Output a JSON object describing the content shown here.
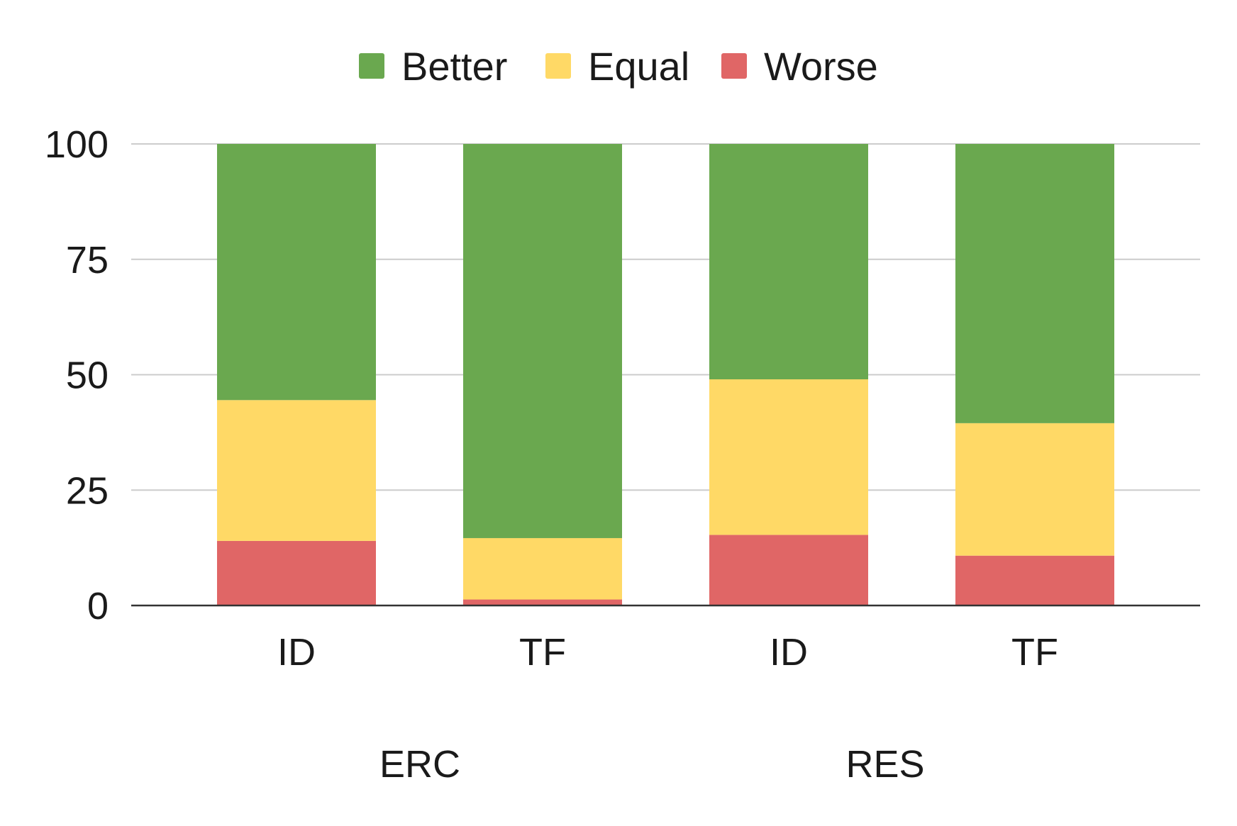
{
  "chart_data": {
    "type": "bar",
    "stacked": true,
    "categories": [
      "ID",
      "TF",
      "ID",
      "TF"
    ],
    "groups": [
      {
        "label": "ERC",
        "categories": [
          "ID",
          "TF"
        ]
      },
      {
        "label": "RES",
        "categories": [
          "ID",
          "TF"
        ]
      }
    ],
    "series": [
      {
        "name": "Worse",
        "color": "#e06666",
        "values": [
          14,
          1.3,
          15.3,
          10.8
        ]
      },
      {
        "name": "Equal",
        "color": "#ffd966",
        "values": [
          30.5,
          13.3,
          33.7,
          28.7
        ]
      },
      {
        "name": "Better",
        "color": "#6aa84f",
        "values": [
          55.5,
          85.4,
          51,
          60.5
        ]
      }
    ],
    "legend": {
      "position": "top",
      "entries": [
        "Better",
        "Equal",
        "Worse"
      ]
    },
    "yticks": [
      "0",
      "25",
      "50",
      "75",
      "100"
    ],
    "ylim": [
      0,
      100
    ],
    "grid": true,
    "title": "",
    "xlabel": "",
    "ylabel": ""
  }
}
